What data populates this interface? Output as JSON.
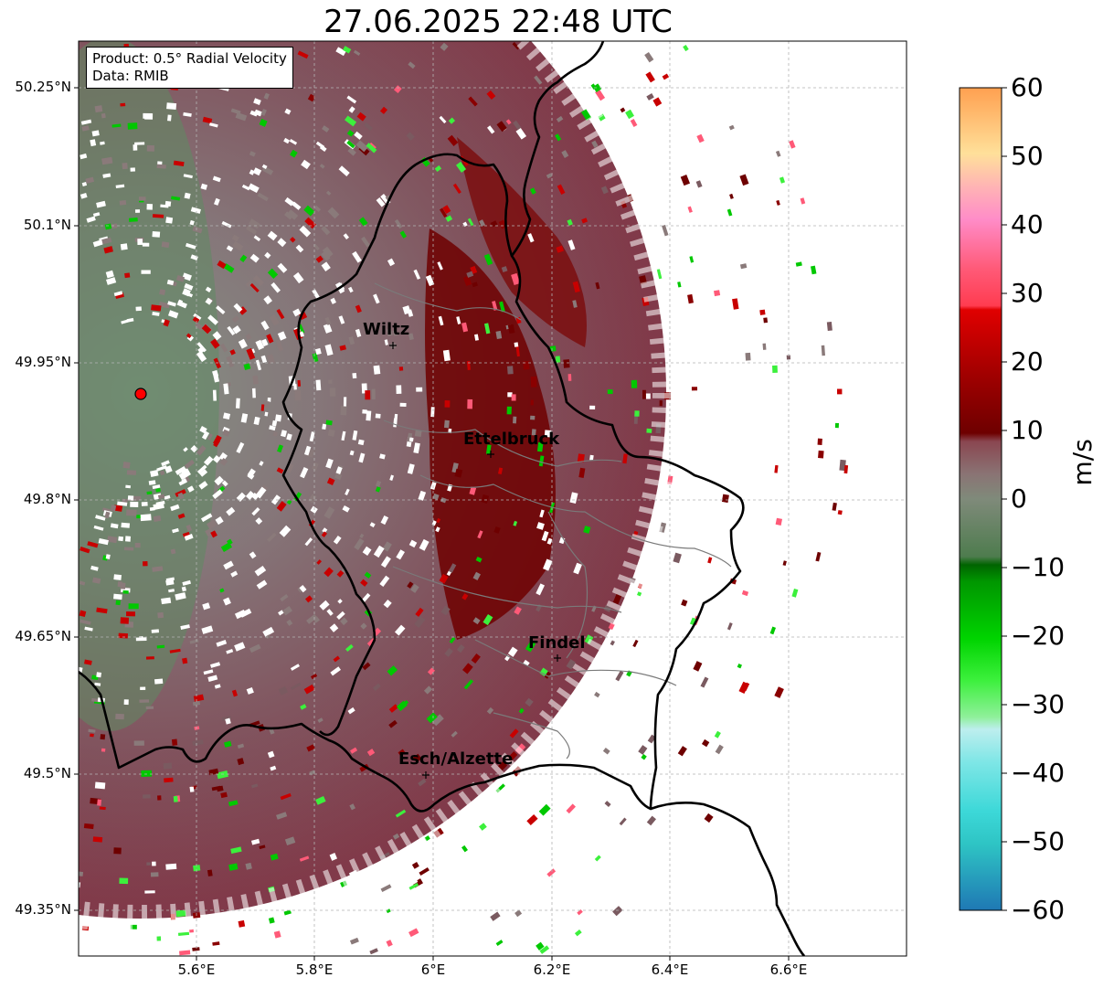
{
  "title": "27.06.2025 22:48 UTC",
  "info": {
    "product": "Product: 0.5° Radial Velocity",
    "source": "Data: RMIB"
  },
  "lat_labels": [
    "50.25°N",
    "50.1°N",
    "49.95°N",
    "49.8°N",
    "49.65°N",
    "49.5°N",
    "49.35°N"
  ],
  "lon_labels": [
    "5.6°E",
    "5.8°E",
    "6°E",
    "6.2°E",
    "6.4°E",
    "6.6°E"
  ],
  "cities": {
    "wiltz": "Wiltz",
    "ettelbruck": "Ettelbruck",
    "findel": "Findel",
    "esch": "Esch/Alzette"
  },
  "colorbar": {
    "label": "m/s",
    "ticks": [
      "60",
      "50",
      "40",
      "30",
      "20",
      "10",
      "0",
      "−10",
      "−20",
      "−30",
      "−40",
      "−50",
      "−60"
    ],
    "range": [
      -60,
      60
    ],
    "colors": [
      "#1f78b4",
      "#2ec4c4",
      "#5fe0e0",
      "#aee8ec",
      "#8ff09a",
      "#3cf03c",
      "#00c800",
      "#007a00",
      "#5a7a5a",
      "#8a7e7e",
      "#8a5a62",
      "#6e0000",
      "#c80000",
      "#ff0000",
      "#ff5a6e",
      "#ff8cc8",
      "#ffb4b4",
      "#ffdc9a",
      "#ffa050"
    ]
  },
  "colors": {
    "border": "#000000",
    "grid": "#b4b4b4",
    "radar_marker": "#ff0000"
  }
}
